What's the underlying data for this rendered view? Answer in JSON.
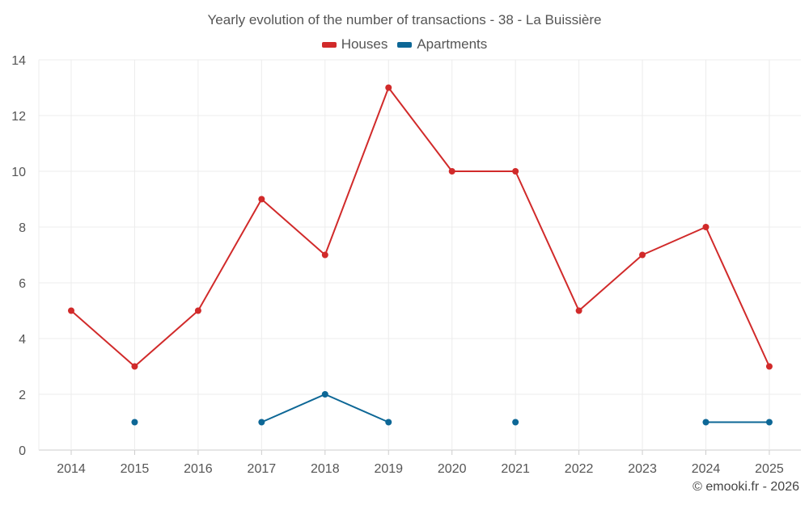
{
  "chart_data": {
    "type": "line",
    "title": "Yearly evolution of the number of transactions - 38 - La Buissière",
    "categories": [
      "2014",
      "2015",
      "2016",
      "2017",
      "2018",
      "2019",
      "2020",
      "2021",
      "2022",
      "2023",
      "2024",
      "2025"
    ],
    "yticks": [
      "0",
      "2",
      "4",
      "6",
      "8",
      "10",
      "12",
      "14"
    ],
    "ylim": [
      0,
      14
    ],
    "xlabel": "",
    "ylabel": "",
    "grid": true,
    "legend_position": "top-center",
    "series": [
      {
        "name": "Houses",
        "color": "#d12a2a",
        "values": [
          5,
          3,
          5,
          9,
          7,
          13,
          10,
          10,
          5,
          7,
          8,
          3
        ]
      },
      {
        "name": "Apartments",
        "color": "#0d6796",
        "values": [
          null,
          1,
          null,
          1,
          2,
          1,
          null,
          1,
          null,
          null,
          1,
          1
        ]
      }
    ]
  },
  "footer": {
    "credit": "© emooki.fr - 2026"
  }
}
